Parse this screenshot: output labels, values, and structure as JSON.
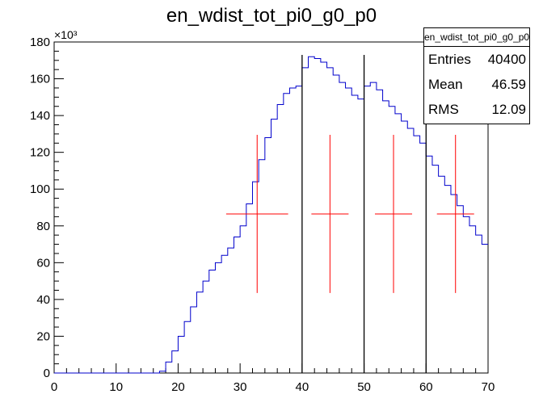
{
  "title": "en_wdist_tot_pi0_g0_p0",
  "stats": {
    "name": "en_wdist_tot_pi0_g0_p0",
    "rows": [
      {
        "label": "Entries",
        "value": "40400"
      },
      {
        "label": "Mean",
        "value": "46.59"
      },
      {
        "label": "RMS",
        "value": "12.09"
      }
    ]
  },
  "colors": {
    "histogram": "#0000cc",
    "markers": "#ff0000",
    "lines": "#000000",
    "axis": "#000000"
  },
  "chart_data": {
    "type": "line",
    "title": "en_wdist_tot_pi0_g0_p0",
    "xlabel": "",
    "ylabel": "",
    "xlim": [
      0,
      70
    ],
    "ylim": [
      0,
      180000
    ],
    "y_multiplier_label": "×10³",
    "x_ticks": [
      "0",
      "10",
      "20",
      "30",
      "40",
      "50",
      "60",
      "70"
    ],
    "y_ticks": [
      "0",
      "20",
      "40",
      "60",
      "80",
      "100",
      "120",
      "140",
      "160",
      "180"
    ],
    "grid": false,
    "series": [
      {
        "style": "step",
        "bin_width": 1,
        "x": [
          0,
          1,
          2,
          3,
          4,
          5,
          6,
          7,
          8,
          9,
          10,
          11,
          12,
          13,
          14,
          15,
          16,
          17,
          18,
          19,
          20,
          21,
          22,
          23,
          24,
          25,
          26,
          27,
          28,
          29,
          30,
          31,
          32,
          33,
          34,
          35,
          36,
          37,
          38,
          39,
          40,
          41,
          42,
          43,
          44,
          45,
          46,
          47,
          48,
          49,
          50,
          51,
          52,
          53,
          54,
          55,
          56,
          57,
          58,
          59,
          60,
          61,
          62,
          63,
          64,
          65,
          66,
          67,
          68,
          69
        ],
        "y": [
          0,
          0,
          0,
          0,
          0,
          0,
          0,
          0,
          0,
          0,
          0,
          0,
          0,
          0,
          0,
          0,
          0,
          1000,
          6000,
          12000,
          20000,
          28000,
          36000,
          44000,
          50000,
          56000,
          60000,
          64000,
          68000,
          74000,
          80000,
          92000,
          104000,
          116000,
          128000,
          138000,
          146000,
          152000,
          155000,
          156000,
          166000,
          172000,
          171000,
          169000,
          166000,
          162000,
          158000,
          155000,
          151000,
          149000,
          156000,
          158000,
          154000,
          148000,
          145000,
          141000,
          137000,
          133000,
          129000,
          125000,
          118000,
          113000,
          107000,
          102000,
          97000,
          91000,
          85000,
          80000,
          75000,
          70000
        ]
      }
    ],
    "markers": [
      {
        "x": 32.75,
        "y": 86500,
        "x_err": 5,
        "y_err": 43000
      },
      {
        "x": 44.5,
        "y": 86500,
        "x_err": 3,
        "y_err": 43000
      },
      {
        "x": 54.75,
        "y": 86500,
        "x_err": 3,
        "y_err": 43000
      },
      {
        "x": 64.75,
        "y": 86500,
        "x_err": 3,
        "y_err": 43000
      }
    ],
    "vertical_lines": [
      {
        "x": 40,
        "y_top": 173000
      },
      {
        "x": 50,
        "y_top": 173000
      },
      {
        "x": 60,
        "y_top": 173000
      }
    ]
  }
}
